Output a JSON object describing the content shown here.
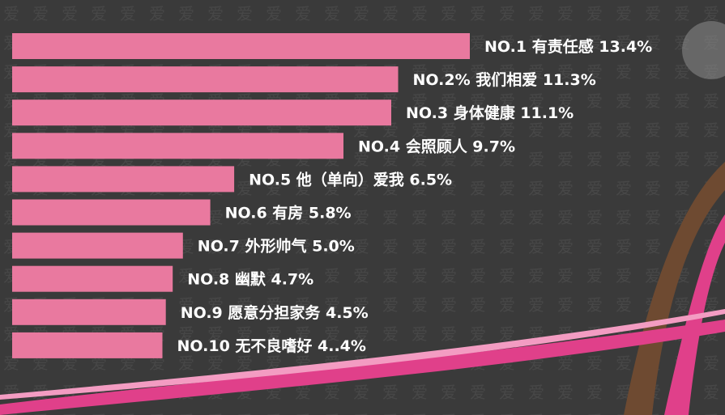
{
  "chart_data": {
    "type": "bar",
    "orientation": "horizontal",
    "categories": [
      "NO.1 有责任感",
      "NO.2% 我们相爱",
      "NO.3 身体健康",
      "NO.4 会照顾人",
      "NO.5 他（单向）爱我",
      "NO.6 有房",
      "NO.7 外形帅气",
      "NO.8 幽默",
      "NO.9 愿意分担家务",
      "NO.10 无不良嗜好"
    ],
    "value_labels": [
      "13.4%",
      "11.3%",
      "11.1%",
      "9.7%",
      "6.5%",
      "5.8%",
      "5.0%",
      "4.7%",
      "4.5%",
      "4..4%"
    ],
    "values": [
      13.4,
      11.3,
      11.1,
      9.7,
      6.5,
      5.8,
      5.0,
      4.7,
      4.5,
      4.4
    ],
    "bar_color": "#e9799f",
    "grid": false,
    "legend": "none"
  },
  "colors": {
    "background": "#3a3a3a",
    "pattern": "#474747",
    "bar": "#e9799f",
    "accent_pink": "#e0408a",
    "accent_light_pink": "#f39cc2",
    "accent_brown": "#6e4a31",
    "label_text": "#ffffff"
  }
}
